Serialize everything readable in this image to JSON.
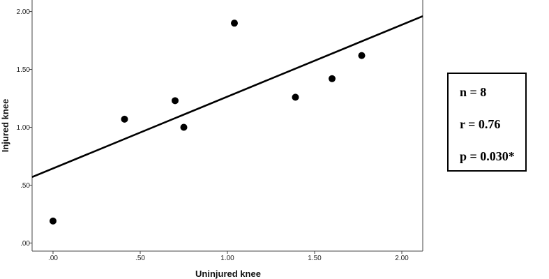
{
  "chart_data": {
    "type": "scatter",
    "title": "",
    "xlabel": "Uninjured knee",
    "ylabel": "Injured knee",
    "xlim": [
      -0.12,
      2.12
    ],
    "ylim": [
      -0.07,
      2.1
    ],
    "x_ticks": [
      {
        "value": 0.0,
        "label": ".00"
      },
      {
        "value": 0.5,
        "label": ".50"
      },
      {
        "value": 1.0,
        "label": "1.00"
      },
      {
        "value": 1.5,
        "label": "1.50"
      },
      {
        "value": 2.0,
        "label": "2.00"
      }
    ],
    "y_ticks": [
      {
        "value": 0.0,
        "label": ".00"
      },
      {
        "value": 0.5,
        "label": ".50"
      },
      {
        "value": 1.0,
        "label": "1.00"
      },
      {
        "value": 1.5,
        "label": "1.50"
      },
      {
        "value": 2.0,
        "label": "2.00"
      }
    ],
    "points": [
      {
        "x": 0.0,
        "y": 0.19
      },
      {
        "x": 0.41,
        "y": 1.07
      },
      {
        "x": 0.7,
        "y": 1.23
      },
      {
        "x": 0.75,
        "y": 1.0
      },
      {
        "x": 1.04,
        "y": 1.9
      },
      {
        "x": 1.39,
        "y": 1.26
      },
      {
        "x": 1.6,
        "y": 1.42
      },
      {
        "x": 1.77,
        "y": 1.62
      }
    ],
    "fit_line": {
      "x": [
        -0.12,
        2.12
      ],
      "y": [
        0.57,
        1.96
      ]
    },
    "grid": false,
    "point_color": "#000000",
    "line_color": "#000000"
  },
  "stats": {
    "n": "n = 8",
    "r": "r = 0.76",
    "p": "p = 0.030*"
  }
}
